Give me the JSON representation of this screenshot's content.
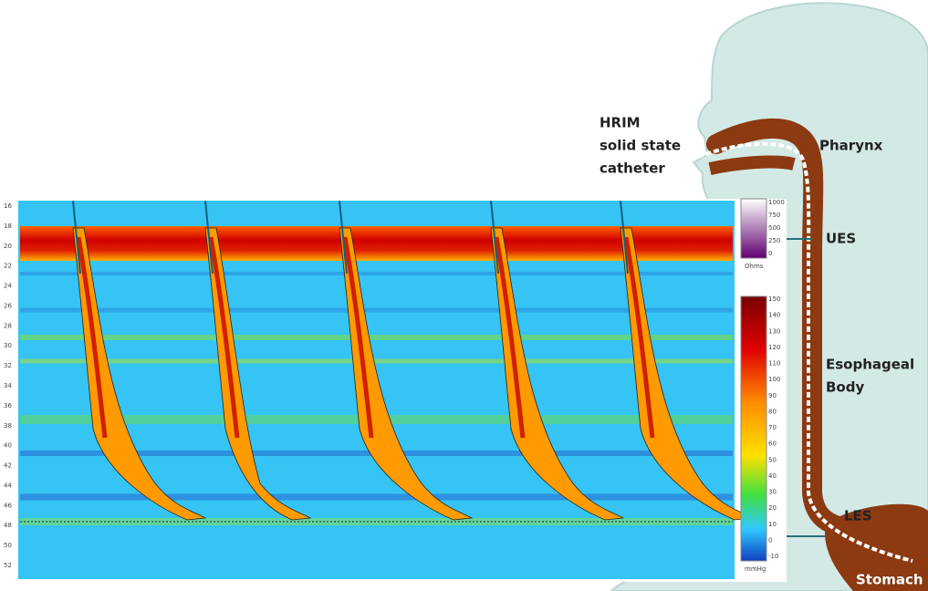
{
  "diagram": {
    "catheter_label": [
      "HRIM",
      "solid state",
      "catheter"
    ],
    "anatomy_labels": {
      "pharynx": "Pharynx",
      "ues": "UES",
      "body": [
        "Esophageal",
        "Body"
      ],
      "les": "LES",
      "stomach": "Stomach"
    },
    "plot": {
      "y_labels": [
        "16",
        "18",
        "20",
        "22",
        "24",
        "26",
        "28",
        "30",
        "32",
        "34",
        "36",
        "38",
        "40",
        "42",
        "44",
        "46",
        "48",
        "50",
        "52"
      ],
      "impedance_scale": {
        "labels": [
          "1000",
          "750",
          "500",
          "250",
          "0"
        ],
        "unit": "Ohms"
      },
      "pressure_scale": {
        "labels": [
          "150",
          "140",
          "130",
          "120",
          "110",
          "100",
          "90",
          "80",
          "70",
          "60",
          "50",
          "40",
          "30",
          "20",
          "10",
          "0",
          "-10"
        ],
        "unit": "mmHg"
      }
    }
  }
}
